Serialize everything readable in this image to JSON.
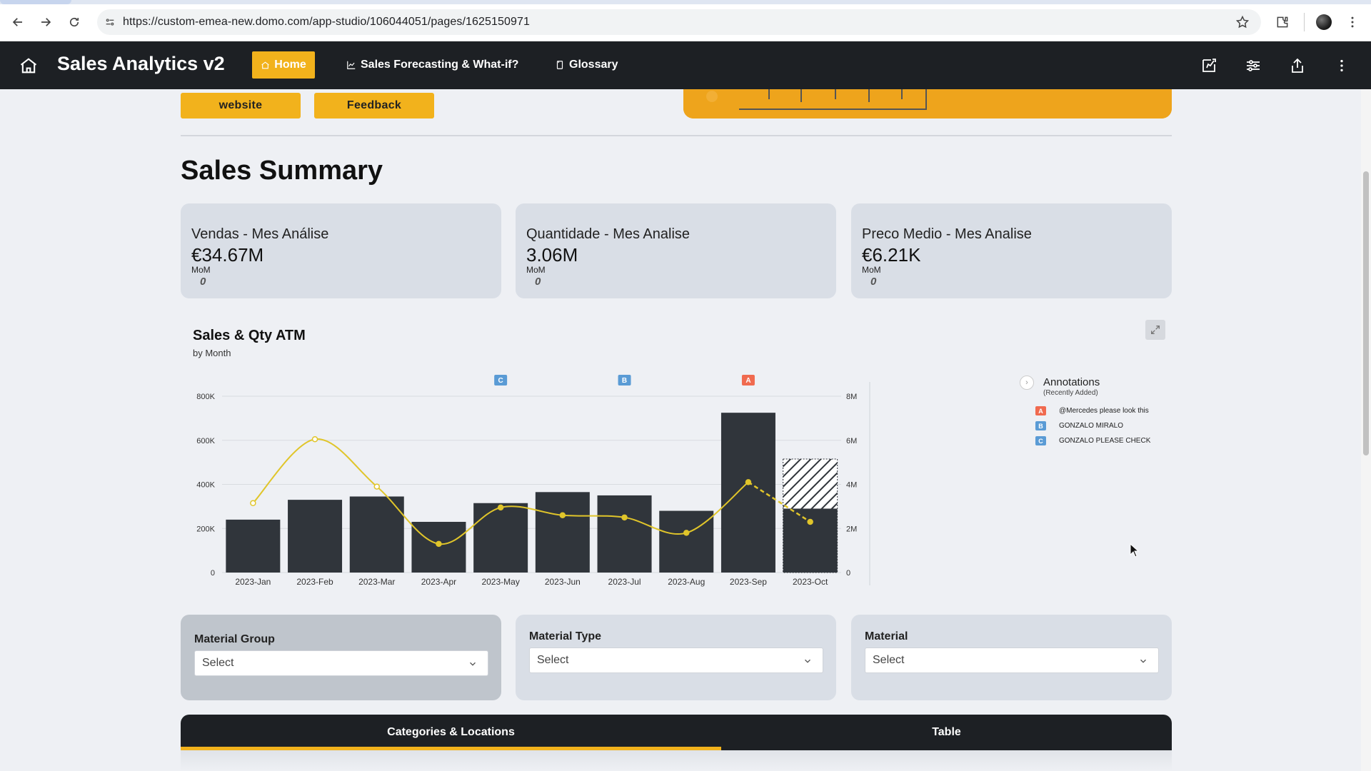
{
  "browser": {
    "url": "https://custom-emea-new.domo.com/app-studio/106044051/pages/1625150971"
  },
  "app": {
    "title": "Sales Analytics v2",
    "nav": [
      {
        "label": "Home"
      },
      {
        "label": "Sales Forecasting & What-if?"
      },
      {
        "label": "Glossary"
      }
    ]
  },
  "top_buttons": {
    "website": "website",
    "feedback": "Feedback"
  },
  "section_title": "Sales Summary",
  "kpis": [
    {
      "title": "Vendas - Mes Análise",
      "value": "€34.67M",
      "mom_label": "MoM",
      "mom_value": "0"
    },
    {
      "title": "Quantidade - Mes Analise",
      "value": "3.06M",
      "mom_label": "MoM",
      "mom_value": "0"
    },
    {
      "title": "Preco Medio - Mes Analise",
      "value": "€6.21K",
      "mom_label": "MoM",
      "mom_value": "0"
    }
  ],
  "chart": {
    "title": "Sales & Qty ATM",
    "subtitle": "by Month"
  },
  "chart_data": {
    "type": "bar",
    "categories": [
      "2023-Jan",
      "2023-Feb",
      "2023-Mar",
      "2023-Apr",
      "2023-May",
      "2023-Jun",
      "2023-Jul",
      "2023-Aug",
      "2023-Sep",
      "2023-Oct"
    ],
    "series": [
      {
        "axis": "left",
        "type": "bar",
        "values": [
          240000,
          330000,
          345000,
          230000,
          315000,
          365000,
          350000,
          280000,
          725000,
          290000
        ],
        "projected_top": [
          null,
          null,
          null,
          null,
          null,
          null,
          null,
          null,
          null,
          515000
        ]
      },
      {
        "axis": "right",
        "type": "line",
        "values": [
          3150000,
          6050000,
          3900000,
          1300000,
          2950000,
          2600000,
          2500000,
          1800000,
          4100000,
          2300000
        ]
      }
    ],
    "y_left": {
      "ticks": [
        "0",
        "200K",
        "400K",
        "600K",
        "800K"
      ],
      "range": [
        0,
        800000
      ]
    },
    "y_right": {
      "ticks": [
        "0",
        "2M",
        "4M",
        "6M",
        "8M"
      ],
      "range": [
        0,
        8000000
      ]
    },
    "grid": true,
    "colors": {
      "bar": "#30353b",
      "line": "#e0c52a",
      "hatch": "#30353b"
    },
    "annotation_markers": [
      {
        "label": "C",
        "category": "2023-May",
        "color": "#5a9bd5"
      },
      {
        "label": "B",
        "category": "2023-Jul",
        "color": "#5a9bd5"
      },
      {
        "label": "A",
        "category": "2023-Sep",
        "color": "#f06a4f"
      }
    ]
  },
  "annotations": {
    "title": "Annotations",
    "subtitle": "(Recently Added)",
    "items": [
      {
        "badge": "A",
        "text": "@Mercedes please look this",
        "color": "#f06a4f"
      },
      {
        "badge": "B",
        "text": "GONZALO MIRALO",
        "color": "#5a9bd5"
      },
      {
        "badge": "C",
        "text": "GONZALO PLEASE CHECK",
        "color": "#5a9bd5"
      }
    ]
  },
  "filters": [
    {
      "label": "Material Group",
      "value": "Select"
    },
    {
      "label": "Material Type",
      "value": "Select"
    },
    {
      "label": "Material",
      "value": "Select"
    }
  ],
  "tabs": [
    {
      "label": "Categories & Locations"
    },
    {
      "label": "Table"
    }
  ],
  "colors": {
    "accent": "#f2b21c",
    "header_bg": "#1d2024",
    "card_bg": "#d9dee6"
  }
}
